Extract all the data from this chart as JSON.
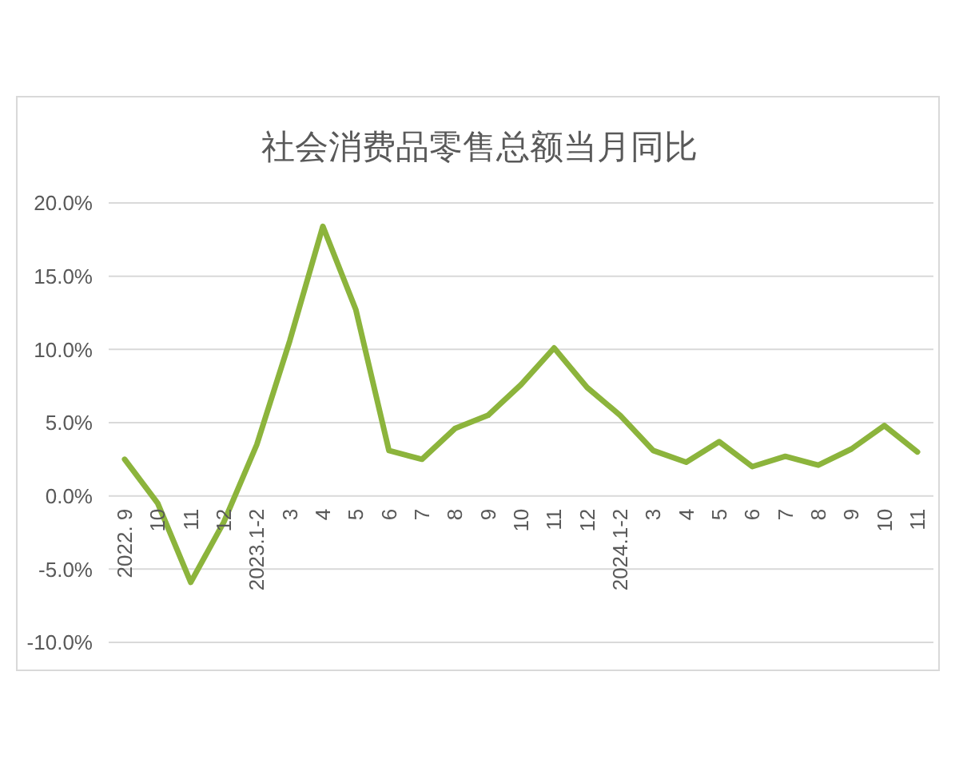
{
  "chart_data": {
    "type": "line",
    "title": "社会消费品零售总额当月同比",
    "categories": [
      "2022. 9",
      "10",
      "11",
      "12",
      "2023.1-2",
      "3",
      "4",
      "5",
      "6",
      "7",
      "8",
      "9",
      "10",
      "11",
      "12",
      "2024.1-2",
      "3",
      "4",
      "5",
      "6",
      "7",
      "8",
      "9",
      "10",
      "11"
    ],
    "series": [
      {
        "color": "#8cb43c",
        "values": [
          2.5,
          -0.5,
          -5.9,
          -1.8,
          3.5,
          10.6,
          18.4,
          12.7,
          3.1,
          2.5,
          4.6,
          5.5,
          7.6,
          10.1,
          7.4,
          5.5,
          3.1,
          2.3,
          3.7,
          2.0,
          2.7,
          2.1,
          3.2,
          4.8,
          3.0
        ]
      }
    ],
    "ylim": [
      -10,
      20
    ],
    "yticks": [
      {
        "value": -10,
        "label": "-10.0%"
      },
      {
        "value": -5,
        "label": "-5.0%"
      },
      {
        "value": 0,
        "label": "0.0%"
      },
      {
        "value": 5,
        "label": "5.0%"
      },
      {
        "value": 10,
        "label": "10.0%"
      },
      {
        "value": 15,
        "label": "15.0%"
      },
      {
        "value": 20,
        "label": "20.0%"
      }
    ],
    "grid": "y"
  }
}
